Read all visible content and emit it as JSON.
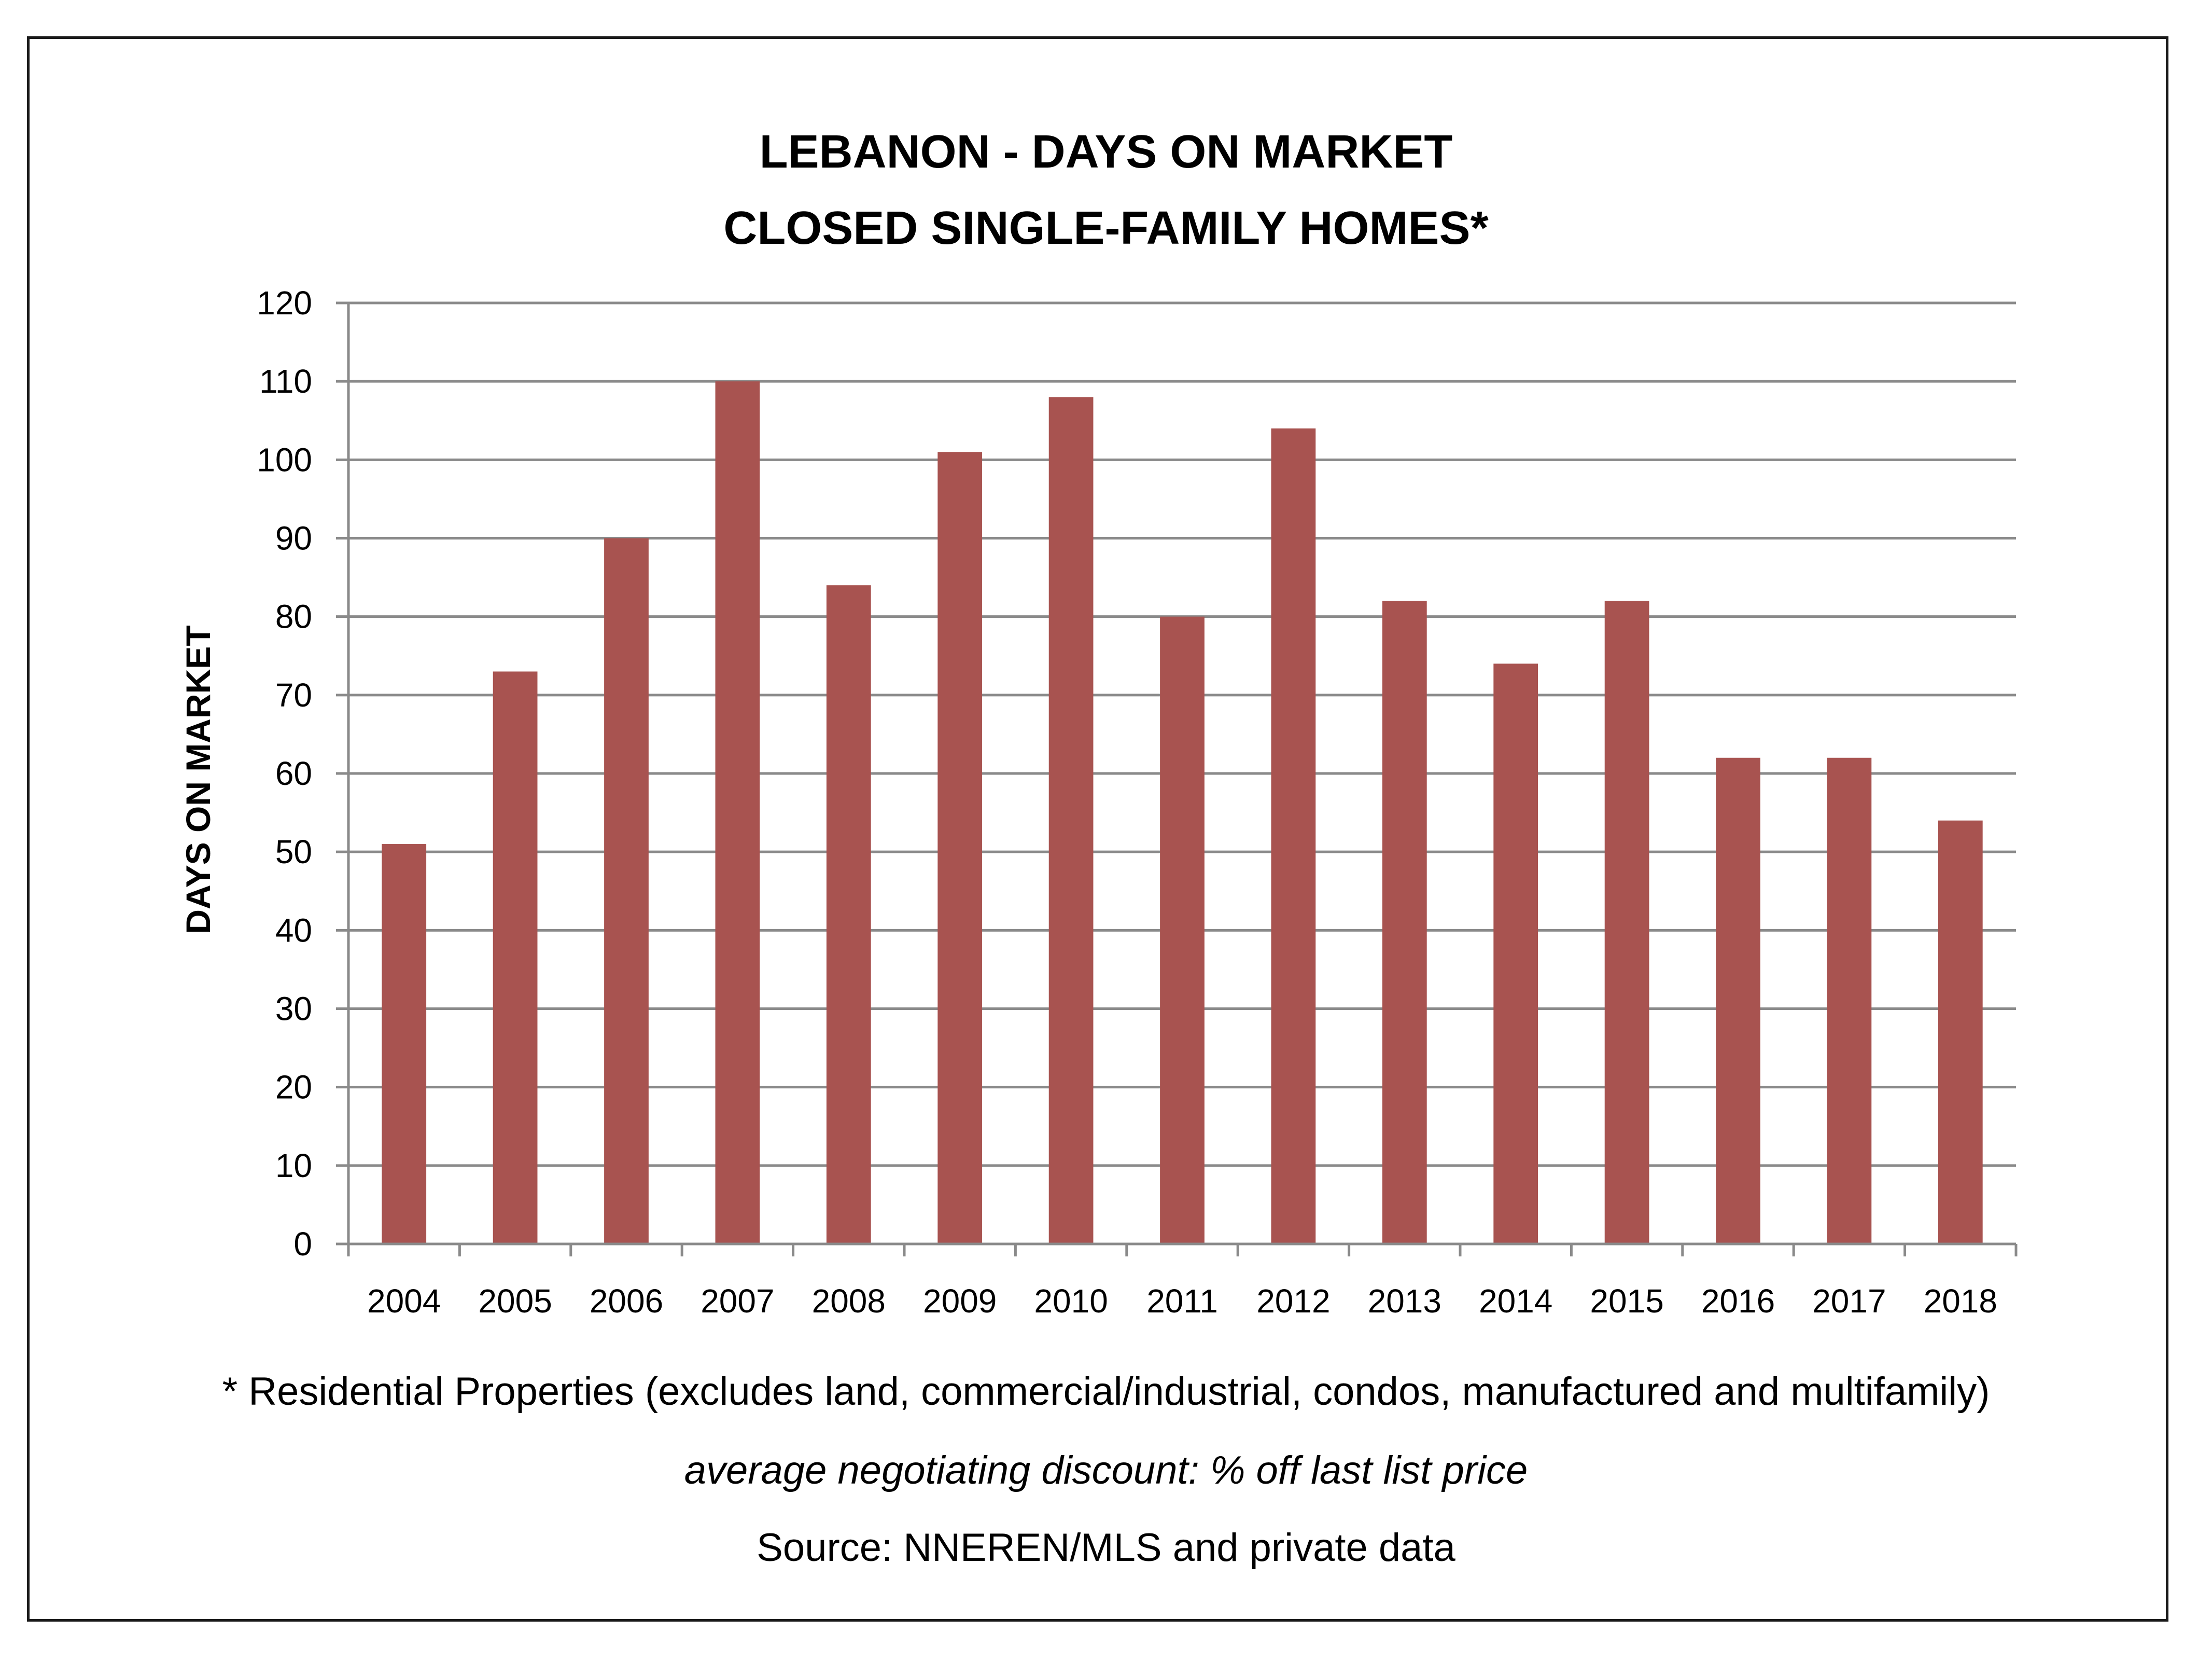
{
  "chart_data": {
    "type": "bar",
    "title_line1": "LEBANON - DAYS ON MARKET",
    "title_line2": "CLOSED SINGLE-FAMILY HOMES*",
    "ylabel": "DAYS ON MARKET",
    "xlabel": "",
    "ylim": [
      0,
      120
    ],
    "ytick_step": 10,
    "grid": true,
    "bar_color": "#a85350",
    "categories": [
      "2004",
      "2005",
      "2006",
      "2007",
      "2008",
      "2009",
      "2010",
      "2011",
      "2012",
      "2013",
      "2014",
      "2015",
      "2016",
      "2017",
      "2018"
    ],
    "values": [
      51,
      73,
      90,
      110,
      84,
      101,
      108,
      80,
      104,
      82,
      74,
      82,
      62,
      62,
      54
    ]
  },
  "footnotes": {
    "line1": "* Residential Properties (excludes land, commercial/industrial, condos, manufactured and multifamily)",
    "line2": "average negotiating discount: % off last list price",
    "line3": "Source: NNEREN/MLS and private data"
  }
}
